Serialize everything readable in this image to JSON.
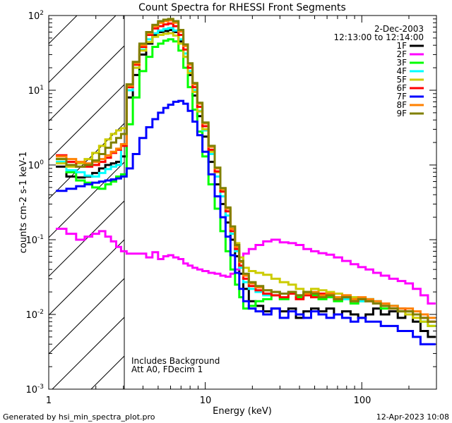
{
  "chart_data": {
    "type": "line",
    "title": "Count Spectra for RHESSI Front Segments",
    "xlabel": "Energy (keV)",
    "ylabel": "counts cm-2 s-1 keV-1",
    "xscale": "log",
    "yscale": "log",
    "xlim": [
      1,
      300
    ],
    "ylim": [
      0.001,
      100
    ],
    "x_tick_labels": [
      "1",
      "10",
      "100"
    ],
    "y_tick_labels": [
      {
        "base": "10",
        "exp": "-3"
      },
      {
        "base": "10",
        "exp": "-2"
      },
      {
        "base": "10",
        "exp": "-1"
      },
      {
        "base": "10",
        "exp": "0"
      },
      {
        "base": "10",
        "exp": "1"
      },
      {
        "base": "10",
        "exp": "2"
      }
    ],
    "excluded_region": [
      1,
      3
    ],
    "legend_title": [
      "2-Dec-2003",
      "12:13:00 to 12:14:00"
    ],
    "annotations": [
      "Includes Background",
      "Att A0, FDecim 1"
    ],
    "footer_left": "Generated by hsi_min_spectra_plot.pro",
    "footer_right": "12-Apr-2023 10:08",
    "x_points": [
      1.2,
      1.4,
      1.6,
      1.8,
      2.0,
      2.2,
      2.4,
      2.6,
      2.8,
      3.0,
      3.3,
      3.6,
      4.0,
      4.4,
      4.8,
      5.2,
      5.6,
      6.0,
      6.5,
      7.0,
      7.5,
      8.0,
      8.6,
      9.2,
      10,
      11,
      12,
      13,
      14,
      15,
      16,
      17,
      18,
      20,
      22,
      25,
      28,
      32,
      36,
      40,
      45,
      50,
      56,
      63,
      70,
      80,
      90,
      100,
      112,
      125,
      140,
      160,
      180,
      200,
      225,
      250,
      280
    ],
    "series": [
      {
        "name": "1F",
        "color": "#000000",
        "values": [
          0.95,
          0.7,
          0.68,
          0.7,
          0.78,
          0.9,
          1.0,
          1.05,
          1.1,
          1.3,
          8,
          16,
          30,
          42,
          55,
          60,
          62,
          64,
          60,
          45,
          28,
          16,
          8.5,
          4.5,
          2.4,
          1.1,
          0.55,
          0.3,
          0.17,
          0.1,
          0.06,
          0.035,
          0.022,
          0.015,
          0.013,
          0.011,
          0.012,
          0.011,
          0.012,
          0.009,
          0.011,
          0.012,
          0.011,
          0.012,
          0.01,
          0.011,
          0.01,
          0.009,
          0.01,
          0.012,
          0.01,
          0.011,
          0.009,
          0.01,
          0.008,
          0.006,
          0.005
        ]
      },
      {
        "name": "2F",
        "color": "#ff00ff",
        "values": [
          0.14,
          0.12,
          0.1,
          0.11,
          0.12,
          0.13,
          0.11,
          0.095,
          0.08,
          0.07,
          0.065,
          0.065,
          0.065,
          0.058,
          0.068,
          0.055,
          0.06,
          0.062,
          0.058,
          0.055,
          0.048,
          0.045,
          0.042,
          0.04,
          0.038,
          0.036,
          0.035,
          0.033,
          0.032,
          0.035,
          0.04,
          0.05,
          0.065,
          0.075,
          0.085,
          0.095,
          0.1,
          0.092,
          0.09,
          0.085,
          0.075,
          0.07,
          0.066,
          0.063,
          0.058,
          0.052,
          0.047,
          0.043,
          0.04,
          0.036,
          0.033,
          0.03,
          0.028,
          0.026,
          0.022,
          0.018,
          0.014
        ]
      },
      {
        "name": "3F",
        "color": "#00ff00",
        "values": [
          1.2,
          0.8,
          0.62,
          0.58,
          0.5,
          0.48,
          0.55,
          0.6,
          0.7,
          0.75,
          3.5,
          8,
          18,
          28,
          38,
          42,
          46,
          48,
          45,
          34,
          20,
          11,
          5.5,
          2.8,
          1.3,
          0.55,
          0.26,
          0.13,
          0.07,
          0.04,
          0.025,
          0.017,
          0.012,
          0.013,
          0.015,
          0.016,
          0.018,
          0.016,
          0.019,
          0.017,
          0.02,
          0.018,
          0.016,
          0.017,
          0.015,
          0.016,
          0.014,
          0.015,
          0.016,
          0.014,
          0.012,
          0.013,
          0.012,
          0.011,
          0.01,
          0.008,
          0.007
        ]
      },
      {
        "name": "4F",
        "color": "#00ffff",
        "values": [
          1.1,
          0.85,
          0.8,
          0.72,
          0.7,
          0.78,
          0.88,
          0.95,
          1.0,
          1.9,
          10,
          20,
          35,
          48,
          58,
          63,
          66,
          68,
          63,
          48,
          31,
          18,
          10,
          5.3,
          2.9,
          1.4,
          0.7,
          0.38,
          0.21,
          0.12,
          0.07,
          0.042,
          0.027,
          0.022,
          0.02,
          0.018,
          0.02,
          0.019,
          0.02,
          0.018,
          0.019,
          0.02,
          0.018,
          0.019,
          0.017,
          0.016,
          0.017,
          0.015,
          0.016,
          0.015,
          0.014,
          0.013,
          0.012,
          0.011,
          0.01,
          0.008,
          0.007
        ]
      },
      {
        "name": "5F",
        "color": "#cccc00",
        "values": [
          1.05,
          0.95,
          1.05,
          1.2,
          1.45,
          1.8,
          2.2,
          2.6,
          2.9,
          3.1,
          11,
          20,
          34,
          44,
          52,
          55,
          57,
          58,
          54,
          42,
          28,
          17,
          9.5,
          5.2,
          3.0,
          1.5,
          0.8,
          0.45,
          0.26,
          0.15,
          0.09,
          0.058,
          0.042,
          0.038,
          0.036,
          0.034,
          0.03,
          0.027,
          0.025,
          0.022,
          0.02,
          0.022,
          0.021,
          0.02,
          0.019,
          0.018,
          0.017,
          0.016,
          0.015,
          0.014,
          0.013,
          0.012,
          0.011,
          0.01,
          0.009,
          0.008,
          0.007
        ]
      },
      {
        "name": "6F",
        "color": "#ff0000",
        "values": [
          1.35,
          1.1,
          0.95,
          0.95,
          1.0,
          1.1,
          1.25,
          1.45,
          1.6,
          1.8,
          11,
          22,
          38,
          55,
          67,
          72,
          76,
          78,
          72,
          55,
          35,
          20,
          11,
          6.0,
          3.3,
          1.6,
          0.82,
          0.44,
          0.24,
          0.13,
          0.075,
          0.045,
          0.03,
          0.024,
          0.021,
          0.019,
          0.018,
          0.017,
          0.019,
          0.016,
          0.018,
          0.017,
          0.019,
          0.018,
          0.016,
          0.017,
          0.015,
          0.016,
          0.015,
          0.014,
          0.013,
          0.012,
          0.012,
          0.011,
          0.01,
          0.009,
          0.008
        ]
      },
      {
        "name": "7F",
        "color": "#0000ff",
        "values": [
          0.45,
          0.48,
          0.52,
          0.55,
          0.58,
          0.6,
          0.62,
          0.64,
          0.66,
          0.7,
          0.9,
          1.4,
          2.3,
          3.2,
          4.1,
          5.0,
          5.8,
          6.4,
          7.0,
          7.2,
          6.6,
          5.3,
          3.8,
          2.5,
          1.5,
          0.75,
          0.38,
          0.2,
          0.11,
          0.062,
          0.036,
          0.022,
          0.015,
          0.012,
          0.011,
          0.01,
          0.012,
          0.009,
          0.011,
          0.01,
          0.009,
          0.011,
          0.01,
          0.009,
          0.01,
          0.009,
          0.008,
          0.009,
          0.008,
          0.008,
          0.007,
          0.007,
          0.006,
          0.006,
          0.005,
          0.004,
          0.004
        ]
      },
      {
        "name": "8F",
        "color": "#ff8000",
        "values": [
          1.3,
          1.2,
          1.1,
          1.05,
          1.1,
          1.2,
          1.35,
          1.5,
          1.65,
          1.9,
          11.5,
          23,
          40,
          58,
          72,
          80,
          84,
          86,
          80,
          61,
          39,
          22,
          12,
          6.6,
          3.6,
          1.75,
          0.9,
          0.48,
          0.26,
          0.14,
          0.08,
          0.05,
          0.033,
          0.026,
          0.023,
          0.021,
          0.02,
          0.019,
          0.02,
          0.018,
          0.019,
          0.02,
          0.018,
          0.019,
          0.017,
          0.018,
          0.016,
          0.017,
          0.016,
          0.015,
          0.014,
          0.013,
          0.012,
          0.012,
          0.011,
          0.01,
          0.009
        ]
      },
      {
        "name": "9F",
        "color": "#808000",
        "values": [
          1.2,
          1.0,
          0.95,
          1.0,
          1.15,
          1.4,
          1.7,
          2.0,
          2.3,
          2.6,
          12,
          24,
          42,
          60,
          75,
          84,
          88,
          90,
          84,
          64,
          41,
          23,
          12.5,
          6.8,
          3.7,
          1.8,
          0.92,
          0.49,
          0.27,
          0.15,
          0.085,
          0.052,
          0.035,
          0.027,
          0.024,
          0.021,
          0.02,
          0.019,
          0.02,
          0.018,
          0.02,
          0.019,
          0.017,
          0.018,
          0.016,
          0.017,
          0.015,
          0.016,
          0.015,
          0.014,
          0.013,
          0.012,
          0.011,
          0.011,
          0.01,
          0.009,
          0.008
        ]
      }
    ]
  }
}
